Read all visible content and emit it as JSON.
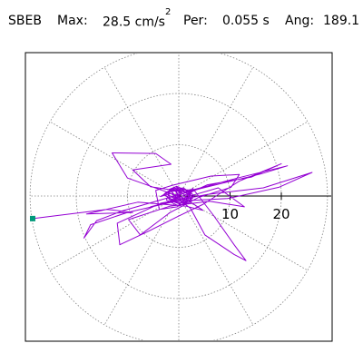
{
  "header": {
    "station": "SBEB",
    "max_label": "Max:",
    "max_value": "28.5",
    "max_unit_base": "cm/s",
    "max_unit_exp": "2",
    "per_label": "Per:",
    "per_value": "0.055 s",
    "ang_label": "Ang:",
    "ang_value": "189.1"
  },
  "colors": {
    "trace": "#9400d3",
    "start_marker": "#00997a",
    "grid": "#808080",
    "axis": "#000000"
  },
  "chart_data": {
    "type": "scatter",
    "subtype": "polar particle-motion hodogram",
    "max_radius": 29,
    "grid": true,
    "grid_rings": [
      10,
      20,
      29
    ],
    "grid_spoke_step_deg": 30,
    "tick_labels": [
      "10",
      "20"
    ],
    "tick_values": [
      10,
      20
    ],
    "start_marker": {
      "x": -28.5,
      "y": -4.4
    },
    "trace": [
      [
        -28.5,
        -4.4
      ],
      [
        -14,
        -2.6
      ],
      [
        -9,
        -3.2
      ],
      [
        -18,
        -3.5
      ],
      [
        -8,
        -1.2
      ],
      [
        1.5,
        -2.0
      ],
      [
        4.7,
        -2.8
      ],
      [
        1.3,
        -0.5
      ],
      [
        -10,
        3.5
      ],
      [
        -13,
        8.4
      ],
      [
        -4.5,
        8.3
      ],
      [
        -1.5,
        6.2
      ],
      [
        -9,
        5.1
      ],
      [
        -5.5,
        1.8
      ],
      [
        1.2,
        0.8
      ],
      [
        11.8,
        3.6
      ],
      [
        21.2,
        5.9
      ],
      [
        16,
        4.3
      ],
      [
        4,
        1.4
      ],
      [
        -11,
        -2.9
      ],
      [
        -16,
        -4.8
      ],
      [
        -18.5,
        -8.2
      ],
      [
        -17.2,
        -5.6
      ],
      [
        -10,
        -3.2
      ],
      [
        -0.5,
        -1.0
      ],
      [
        9.5,
        -0.5
      ],
      [
        19.5,
        1.7
      ],
      [
        26,
        4.6
      ],
      [
        16.5,
        1.6
      ],
      [
        5.6,
        0.3
      ],
      [
        -3.5,
        -1.4
      ],
      [
        -12,
        -5.3
      ],
      [
        -11.5,
        -9.5
      ],
      [
        -6.2,
        -7.0
      ],
      [
        -0.2,
        -4.0
      ],
      [
        4.8,
        -1.6
      ],
      [
        11.8,
        2.9
      ],
      [
        20,
        6.3
      ],
      [
        14.2,
        3.7
      ],
      [
        5.6,
        2.2
      ],
      [
        -2.6,
        -1.5
      ],
      [
        -5.5,
        -2.1
      ],
      [
        0.5,
        -0.5
      ],
      [
        7.7,
        1.6
      ],
      [
        12.8,
        -2.1
      ],
      [
        6,
        -1.0
      ],
      [
        -1.8,
        -2.0
      ],
      [
        -9.8,
        -4.6
      ],
      [
        -7.5,
        -7.6
      ],
      [
        -1.8,
        -3.3
      ],
      [
        3.8,
        -0.3
      ],
      [
        10.2,
        1.7
      ],
      [
        11.8,
        4.2
      ],
      [
        6.3,
        3.9
      ],
      [
        -1.2,
        2.1
      ],
      [
        -4.5,
        1.1
      ],
      [
        -3.8,
        -2.6
      ],
      [
        -0.3,
        -2.1
      ],
      [
        2.7,
        1.5
      ],
      [
        6.8,
        -3.8
      ],
      [
        10.8,
        -9.5
      ],
      [
        13.1,
        -12.6
      ],
      [
        10.8,
        -11.4
      ],
      [
        5.1,
        -7.6
      ],
      [
        2.3,
        -2.4
      ],
      [
        -1.5,
        0.5
      ],
      [
        -3.6,
        -0.1
      ],
      [
        -2.1,
        0.7
      ],
      [
        -0.9,
        1.4
      ],
      [
        0.5,
        -1.0
      ],
      [
        1.8,
        -0.4
      ],
      [
        0.4,
        0.8
      ],
      [
        -1.2,
        -0.1
      ],
      [
        1.2,
        -1.2
      ],
      [
        2.8,
        1.2
      ],
      [
        -0.5,
        1.2
      ],
      [
        -2.8,
        0.5
      ],
      [
        -1.5,
        -1.1
      ],
      [
        1.1,
        -0.9
      ],
      [
        2.2,
        0.4
      ],
      [
        1.0,
        1.4
      ],
      [
        -0.7,
        -0.6
      ],
      [
        -2.6,
        0.6
      ],
      [
        -0.6,
        1.8
      ],
      [
        1.5,
        0.7
      ],
      [
        2.6,
        -0.9
      ],
      [
        0.3,
        -1.4
      ],
      [
        -1.8,
        -0.4
      ],
      [
        -2.1,
        0.8
      ],
      [
        0.2,
        1.1
      ],
      [
        2.4,
        0.2
      ],
      [
        1.6,
        -1.0
      ],
      [
        -0.4,
        -0.2
      ],
      [
        -1.9,
        1.3
      ],
      [
        -0.4,
        1.9
      ],
      [
        1.9,
        0.9
      ],
      [
        2.3,
        -1.2
      ],
      [
        -0.1,
        -1.9
      ],
      [
        -2.4,
        -0.8
      ],
      [
        -1.7,
        1.1
      ],
      [
        0.9,
        1.6
      ],
      [
        3.0,
        0.1
      ],
      [
        1.3,
        -1.5
      ],
      [
        -1.0,
        -1.0
      ],
      [
        -2.9,
        0.3
      ],
      [
        -1.1,
        1.6
      ],
      [
        1.7,
        1.1
      ],
      [
        2.7,
        -0.4
      ],
      [
        0.6,
        -1.7
      ],
      [
        -1.6,
        -0.9
      ],
      [
        0.8,
        0.5
      ],
      [
        -0.6,
        1.1
      ],
      [
        0.3,
        -0.5
      ],
      [
        0,
        0
      ]
    ]
  }
}
